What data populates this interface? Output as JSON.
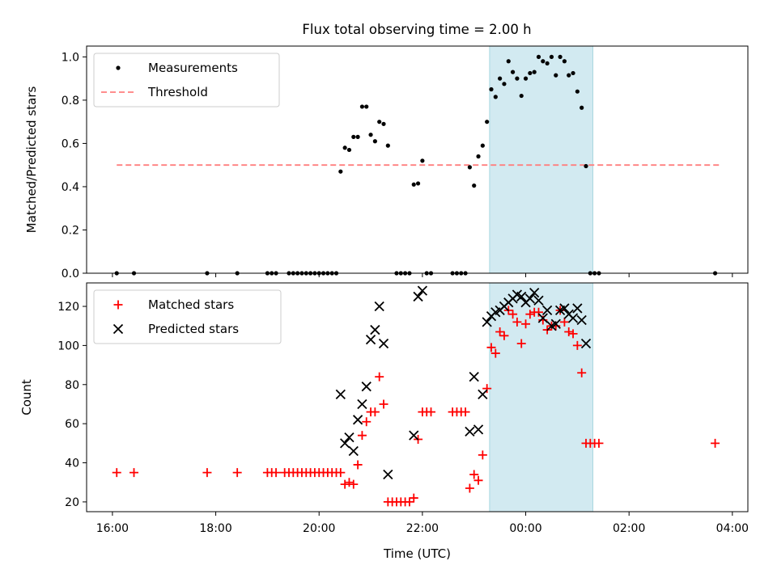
{
  "title": "Flux total observing time = 2.00 h",
  "colors": {
    "measurement": "#000000",
    "threshold": "#ff7f7f",
    "matched": "#ff0000",
    "predicted": "#000000",
    "shade": "#add8e6"
  },
  "chart_data": [
    {
      "type": "scatter",
      "panel": "top",
      "ylabel": "Matched/Predicted stars",
      "xlabel": "",
      "ylim": [
        0,
        1.05
      ],
      "yticks": [
        0,
        0.2,
        0.4,
        0.6,
        0.8,
        1.0
      ],
      "ytick_labels": [
        "0.0",
        "0.2",
        "0.4",
        "0.6",
        "0.8",
        "1.0"
      ],
      "xlim_hours": [
        15.5,
        28.3
      ],
      "shaded_interval": [
        "23:18",
        "01:18"
      ],
      "legend": {
        "position": "upper-left",
        "entries": [
          "Measurements",
          "Threshold"
        ]
      },
      "threshold": {
        "name": "Threshold",
        "value": 0.5,
        "x_range": [
          "16:05",
          "03:45"
        ]
      },
      "series": [
        {
          "name": "Measurements",
          "marker": "dot",
          "points": [
            [
              "16:05",
              0
            ],
            [
              "16:25",
              0
            ],
            [
              "17:50",
              0
            ],
            [
              "18:25",
              0
            ],
            [
              "19:00",
              0
            ],
            [
              "19:05",
              0
            ],
            [
              "19:10",
              0
            ],
            [
              "19:25",
              0
            ],
            [
              "19:30",
              0
            ],
            [
              "19:35",
              0
            ],
            [
              "19:40",
              0
            ],
            [
              "19:45",
              0
            ],
            [
              "19:50",
              0
            ],
            [
              "19:55",
              0
            ],
            [
              "20:00",
              0
            ],
            [
              "20:05",
              0
            ],
            [
              "20:10",
              0
            ],
            [
              "20:15",
              0
            ],
            [
              "20:20",
              0
            ],
            [
              "20:25",
              0.47
            ],
            [
              "20:30",
              0.58
            ],
            [
              "20:35",
              0.57
            ],
            [
              "20:40",
              0.63
            ],
            [
              "20:45",
              0.63
            ],
            [
              "20:50",
              0.77
            ],
            [
              "20:55",
              0.77
            ],
            [
              "21:00",
              0.64
            ],
            [
              "21:05",
              0.61
            ],
            [
              "21:10",
              0.7
            ],
            [
              "21:15",
              0.69
            ],
            [
              "21:20",
              0.59
            ],
            [
              "21:30",
              0
            ],
            [
              "21:35",
              0
            ],
            [
              "21:40",
              0
            ],
            [
              "21:45",
              0
            ],
            [
              "21:50",
              0.41
            ],
            [
              "21:55",
              0.415
            ],
            [
              "22:00",
              0.52
            ],
            [
              "22:05",
              0
            ],
            [
              "22:10",
              0
            ],
            [
              "22:35",
              0
            ],
            [
              "22:40",
              0
            ],
            [
              "22:45",
              0
            ],
            [
              "22:50",
              0
            ],
            [
              "22:55",
              0.49
            ],
            [
              "23:00",
              0.405
            ],
            [
              "23:05",
              0.54
            ],
            [
              "23:10",
              0.59
            ],
            [
              "23:15",
              0.7
            ],
            [
              "23:20",
              0.85
            ],
            [
              "23:25",
              0.815
            ],
            [
              "23:30",
              0.9
            ],
            [
              "23:35",
              0.875
            ],
            [
              "23:40",
              0.98
            ],
            [
              "23:45",
              0.93
            ],
            [
              "23:50",
              0.9
            ],
            [
              "23:55",
              0.82
            ],
            [
              "00:00",
              0.9
            ],
            [
              "00:05",
              0.925
            ],
            [
              "00:10",
              0.93
            ],
            [
              "00:15",
              1.0
            ],
            [
              "00:20",
              0.98
            ],
            [
              "00:25",
              0.97
            ],
            [
              "00:30",
              1.0
            ],
            [
              "00:35",
              0.915
            ],
            [
              "00:40",
              1.0
            ],
            [
              "00:45",
              0.98
            ],
            [
              "00:50",
              0.915
            ],
            [
              "00:55",
              0.925
            ],
            [
              "01:00",
              0.84
            ],
            [
              "01:05",
              0.765
            ],
            [
              "01:10",
              0.495
            ],
            [
              "01:15",
              0
            ],
            [
              "01:20",
              0
            ],
            [
              "01:25",
              0
            ],
            [
              "03:40",
              0
            ]
          ]
        }
      ]
    },
    {
      "type": "scatter",
      "panel": "bottom",
      "ylabel": "Count",
      "xlabel": "Time (UTC)",
      "ylim": [
        15,
        132
      ],
      "yticks": [
        20,
        40,
        60,
        80,
        100,
        120
      ],
      "ytick_labels": [
        "20",
        "40",
        "60",
        "80",
        "100",
        "120"
      ],
      "xlim_hours": [
        15.5,
        28.3
      ],
      "xticks": [
        "16:00",
        "18:00",
        "20:00",
        "22:00",
        "00:00",
        "02:00",
        "04:00"
      ],
      "shaded_interval": [
        "23:18",
        "01:18"
      ],
      "legend": {
        "position": "upper-left",
        "entries": [
          "Matched stars",
          "Predicted stars"
        ]
      },
      "series": [
        {
          "name": "Matched stars",
          "marker": "plus",
          "points": [
            [
              "16:05",
              35
            ],
            [
              "16:25",
              35
            ],
            [
              "17:50",
              35
            ],
            [
              "18:25",
              35
            ],
            [
              "19:00",
              35
            ],
            [
              "19:05",
              35
            ],
            [
              "19:10",
              35
            ],
            [
              "19:20",
              35
            ],
            [
              "19:25",
              35
            ],
            [
              "19:30",
              35
            ],
            [
              "19:35",
              35
            ],
            [
              "19:40",
              35
            ],
            [
              "19:45",
              35
            ],
            [
              "19:50",
              35
            ],
            [
              "19:55",
              35
            ],
            [
              "20:00",
              35
            ],
            [
              "20:05",
              35
            ],
            [
              "20:10",
              35
            ],
            [
              "20:15",
              35
            ],
            [
              "20:20",
              35
            ],
            [
              "20:25",
              35
            ],
            [
              "20:30",
              29
            ],
            [
              "20:35",
              30
            ],
            [
              "20:40",
              29
            ],
            [
              "20:45",
              39
            ],
            [
              "20:50",
              54
            ],
            [
              "20:55",
              61
            ],
            [
              "21:00",
              66
            ],
            [
              "21:05",
              66
            ],
            [
              "21:10",
              84
            ],
            [
              "21:15",
              70
            ],
            [
              "21:20",
              20
            ],
            [
              "21:25",
              20
            ],
            [
              "21:30",
              20
            ],
            [
              "21:35",
              20
            ],
            [
              "21:40",
              20
            ],
            [
              "21:45",
              20
            ],
            [
              "21:50",
              22
            ],
            [
              "21:55",
              52
            ],
            [
              "22:00",
              66
            ],
            [
              "22:05",
              66
            ],
            [
              "22:10",
              66
            ],
            [
              "22:35",
              66
            ],
            [
              "22:40",
              66
            ],
            [
              "22:45",
              66
            ],
            [
              "22:50",
              66
            ],
            [
              "22:55",
              27
            ],
            [
              "23:00",
              34
            ],
            [
              "23:05",
              31
            ],
            [
              "23:10",
              44
            ],
            [
              "23:15",
              78
            ],
            [
              "23:20",
              99
            ],
            [
              "23:25",
              96
            ],
            [
              "23:30",
              107
            ],
            [
              "23:35",
              105
            ],
            [
              "23:40",
              118
            ],
            [
              "23:45",
              116
            ],
            [
              "23:50",
              112
            ],
            [
              "23:55",
              101
            ],
            [
              "00:00",
              111
            ],
            [
              "00:05",
              116
            ],
            [
              "00:10",
              117
            ],
            [
              "00:15",
              117
            ],
            [
              "00:20",
              113
            ],
            [
              "00:25",
              108
            ],
            [
              "00:30",
              110
            ],
            [
              "00:35",
              110
            ],
            [
              "00:40",
              118
            ],
            [
              "00:45",
              112
            ],
            [
              "00:50",
              107
            ],
            [
              "00:55",
              106
            ],
            [
              "01:00",
              100
            ],
            [
              "01:05",
              86
            ],
            [
              "01:10",
              50
            ],
            [
              "01:15",
              50
            ],
            [
              "01:20",
              50
            ],
            [
              "01:25",
              50
            ],
            [
              "03:40",
              50
            ]
          ]
        },
        {
          "name": "Predicted stars",
          "marker": "x",
          "points": [
            [
              "20:25",
              75
            ],
            [
              "20:30",
              50
            ],
            [
              "20:35",
              53
            ],
            [
              "20:40",
              46
            ],
            [
              "20:45",
              62
            ],
            [
              "20:50",
              70
            ],
            [
              "20:55",
              79
            ],
            [
              "21:00",
              103
            ],
            [
              "21:05",
              108
            ],
            [
              "21:10",
              120
            ],
            [
              "21:15",
              101
            ],
            [
              "21:20",
              34
            ],
            [
              "21:50",
              54
            ],
            [
              "21:55",
              125
            ],
            [
              "22:00",
              128
            ],
            [
              "22:55",
              56
            ],
            [
              "23:00",
              84
            ],
            [
              "23:05",
              57
            ],
            [
              "23:10",
              75
            ],
            [
              "23:15",
              112
            ],
            [
              "23:20",
              115
            ],
            [
              "23:25",
              117
            ],
            [
              "23:30",
              118
            ],
            [
              "23:35",
              120
            ],
            [
              "23:40",
              122
            ],
            [
              "23:45",
              124
            ],
            [
              "23:50",
              126
            ],
            [
              "23:55",
              125
            ],
            [
              "00:00",
              122
            ],
            [
              "00:05",
              124
            ],
            [
              "00:10",
              127
            ],
            [
              "00:15",
              123
            ],
            [
              "00:20",
              114
            ],
            [
              "00:25",
              118
            ],
            [
              "00:30",
              110
            ],
            [
              "00:35",
              111
            ],
            [
              "00:40",
              118
            ],
            [
              "00:45",
              119
            ],
            [
              "00:50",
              116
            ],
            [
              "00:55",
              114
            ],
            [
              "01:00",
              119
            ],
            [
              "01:05",
              113
            ],
            [
              "01:10",
              101
            ]
          ]
        }
      ]
    }
  ]
}
